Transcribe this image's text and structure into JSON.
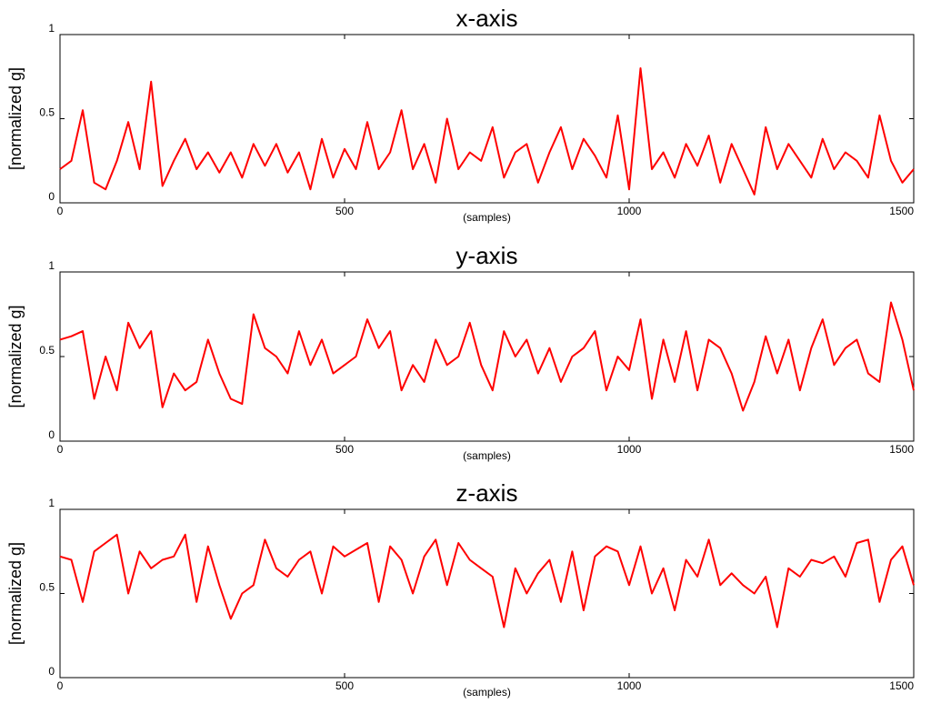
{
  "chart_data": [
    {
      "type": "line",
      "title": "x-axis",
      "xlabel": "(samples)",
      "ylabel": "[normalized g]",
      "xlim": [
        0,
        1500
      ],
      "ylim": [
        0,
        1
      ],
      "xticks": [
        0,
        500,
        1000,
        1500
      ],
      "yticks": [
        0,
        0.5,
        1
      ],
      "x": [
        0,
        20,
        40,
        60,
        80,
        100,
        120,
        140,
        160,
        180,
        200,
        220,
        240,
        260,
        280,
        300,
        320,
        340,
        360,
        380,
        400,
        420,
        440,
        460,
        480,
        500,
        520,
        540,
        560,
        580,
        600,
        620,
        640,
        660,
        680,
        700,
        720,
        740,
        760,
        780,
        800,
        820,
        840,
        860,
        880,
        900,
        920,
        940,
        960,
        980,
        1000,
        1020,
        1040,
        1060,
        1080,
        1100,
        1120,
        1140,
        1160,
        1180,
        1200,
        1220,
        1240,
        1260,
        1280,
        1300,
        1320,
        1340,
        1360,
        1380,
        1400,
        1420,
        1440,
        1460,
        1480,
        1500
      ],
      "series": [
        {
          "color": "#ff0000",
          "values": [
            0.2,
            0.25,
            0.55,
            0.12,
            0.08,
            0.25,
            0.48,
            0.2,
            0.72,
            0.1,
            0.25,
            0.38,
            0.2,
            0.3,
            0.18,
            0.3,
            0.15,
            0.35,
            0.22,
            0.35,
            0.18,
            0.3,
            0.08,
            0.38,
            0.15,
            0.32,
            0.2,
            0.48,
            0.2,
            0.3,
            0.55,
            0.2,
            0.35,
            0.12,
            0.5,
            0.2,
            0.3,
            0.25,
            0.45,
            0.15,
            0.3,
            0.35,
            0.12,
            0.3,
            0.45,
            0.2,
            0.38,
            0.28,
            0.15,
            0.52,
            0.08,
            0.8,
            0.2,
            0.3,
            0.15,
            0.35,
            0.22,
            0.4,
            0.12,
            0.35,
            0.2,
            0.05,
            0.45,
            0.2,
            0.35,
            0.25,
            0.15,
            0.38,
            0.2,
            0.3,
            0.25,
            0.15,
            0.52,
            0.25,
            0.12,
            0.2
          ]
        }
      ]
    },
    {
      "type": "line",
      "title": "y-axis",
      "xlabel": "(samples)",
      "ylabel": "[normalized g]",
      "xlim": [
        0,
        1500
      ],
      "ylim": [
        0,
        1
      ],
      "xticks": [
        0,
        500,
        1000,
        1500
      ],
      "yticks": [
        0,
        0.5,
        1
      ],
      "x": [
        0,
        20,
        40,
        60,
        80,
        100,
        120,
        140,
        160,
        180,
        200,
        220,
        240,
        260,
        280,
        300,
        320,
        340,
        360,
        380,
        400,
        420,
        440,
        460,
        480,
        500,
        520,
        540,
        560,
        580,
        600,
        620,
        640,
        660,
        680,
        700,
        720,
        740,
        760,
        780,
        800,
        820,
        840,
        860,
        880,
        900,
        920,
        940,
        960,
        980,
        1000,
        1020,
        1040,
        1060,
        1080,
        1100,
        1120,
        1140,
        1160,
        1180,
        1200,
        1220,
        1240,
        1260,
        1280,
        1300,
        1320,
        1340,
        1360,
        1380,
        1400,
        1420,
        1440,
        1460,
        1480,
        1500
      ],
      "series": [
        {
          "color": "#ff0000",
          "values": [
            0.6,
            0.62,
            0.65,
            0.25,
            0.5,
            0.3,
            0.7,
            0.55,
            0.65,
            0.2,
            0.4,
            0.3,
            0.35,
            0.6,
            0.4,
            0.25,
            0.22,
            0.75,
            0.55,
            0.5,
            0.4,
            0.65,
            0.45,
            0.6,
            0.4,
            0.45,
            0.5,
            0.72,
            0.55,
            0.65,
            0.3,
            0.45,
            0.35,
            0.6,
            0.45,
            0.5,
            0.7,
            0.45,
            0.3,
            0.65,
            0.5,
            0.6,
            0.4,
            0.55,
            0.35,
            0.5,
            0.55,
            0.65,
            0.3,
            0.5,
            0.42,
            0.72,
            0.25,
            0.6,
            0.35,
            0.65,
            0.3,
            0.6,
            0.55,
            0.4,
            0.18,
            0.35,
            0.62,
            0.4,
            0.6,
            0.3,
            0.55,
            0.72,
            0.45,
            0.55,
            0.6,
            0.4,
            0.35,
            0.82,
            0.6,
            0.3
          ]
        }
      ]
    },
    {
      "type": "line",
      "title": "z-axis",
      "xlabel": "(samples)",
      "ylabel": "[normalized g]",
      "xlim": [
        0,
        1500
      ],
      "ylim": [
        0,
        1
      ],
      "xticks": [
        0,
        500,
        1000,
        1500
      ],
      "yticks": [
        0,
        0.5,
        1
      ],
      "x": [
        0,
        20,
        40,
        60,
        80,
        100,
        120,
        140,
        160,
        180,
        200,
        220,
        240,
        260,
        280,
        300,
        320,
        340,
        360,
        380,
        400,
        420,
        440,
        460,
        480,
        500,
        520,
        540,
        560,
        580,
        600,
        620,
        640,
        660,
        680,
        700,
        720,
        740,
        760,
        780,
        800,
        820,
        840,
        860,
        880,
        900,
        920,
        940,
        960,
        980,
        1000,
        1020,
        1040,
        1060,
        1080,
        1100,
        1120,
        1140,
        1160,
        1180,
        1200,
        1220,
        1240,
        1260,
        1280,
        1300,
        1320,
        1340,
        1360,
        1380,
        1400,
        1420,
        1440,
        1460,
        1480,
        1500
      ],
      "series": [
        {
          "color": "#ff0000",
          "values": [
            0.72,
            0.7,
            0.45,
            0.75,
            0.8,
            0.85,
            0.5,
            0.75,
            0.65,
            0.7,
            0.72,
            0.85,
            0.45,
            0.78,
            0.55,
            0.35,
            0.5,
            0.55,
            0.82,
            0.65,
            0.6,
            0.7,
            0.75,
            0.5,
            0.78,
            0.72,
            0.76,
            0.8,
            0.45,
            0.78,
            0.7,
            0.5,
            0.72,
            0.82,
            0.55,
            0.8,
            0.7,
            0.65,
            0.6,
            0.3,
            0.65,
            0.5,
            0.62,
            0.7,
            0.45,
            0.75,
            0.4,
            0.72,
            0.78,
            0.75,
            0.55,
            0.78,
            0.5,
            0.65,
            0.4,
            0.7,
            0.6,
            0.82,
            0.55,
            0.62,
            0.55,
            0.5,
            0.6,
            0.3,
            0.65,
            0.6,
            0.7,
            0.68,
            0.72,
            0.6,
            0.8,
            0.82,
            0.45,
            0.7,
            0.78,
            0.55
          ]
        }
      ]
    }
  ]
}
